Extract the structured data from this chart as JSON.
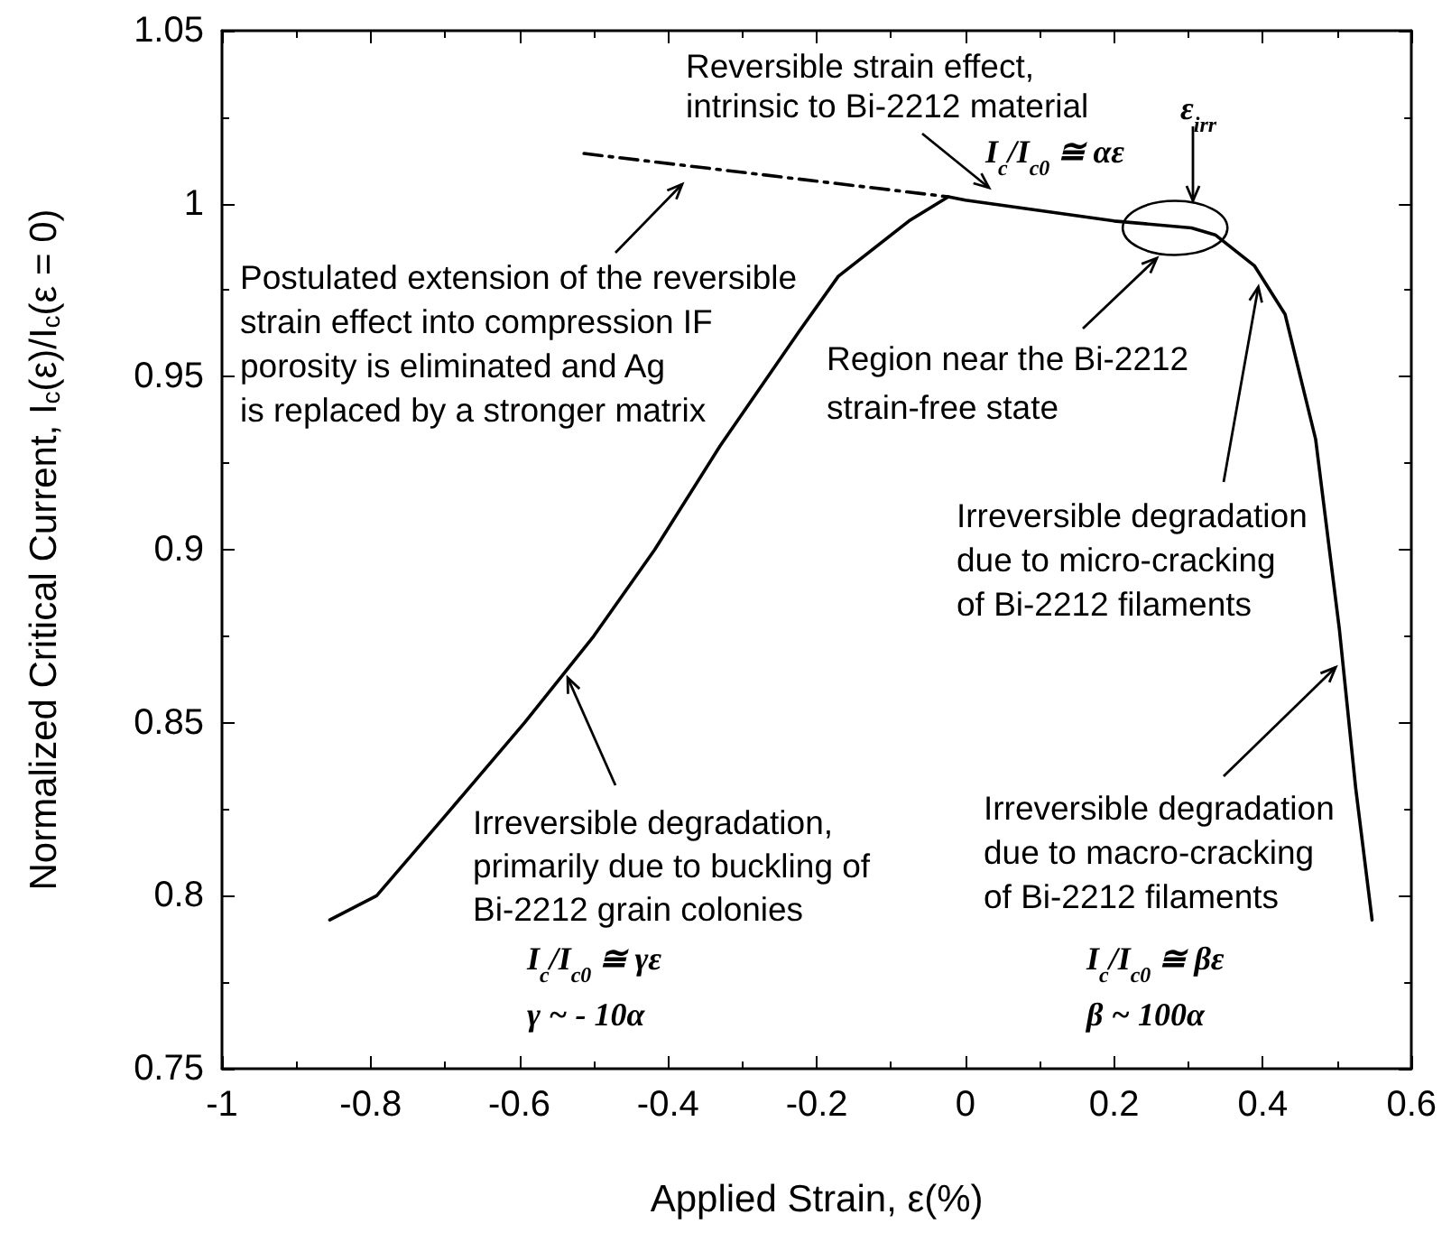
{
  "chart_data": {
    "type": "line",
    "xlabel": "Applied Strain, ε(%)",
    "ylabel": "Normalized Critical Current, I$_{c}$(ε)/I$_{c}$(ε = 0)",
    "xlim": [
      -1,
      0.6
    ],
    "xticks": [
      -1,
      -0.8,
      -0.6,
      -0.4,
      -0.2,
      0,
      0.2,
      0.4,
      0.6
    ],
    "ylim": [
      0.75,
      1.05
    ],
    "yticks": [
      0.75,
      0.8,
      0.85,
      0.9,
      0.95,
      1,
      1.05
    ],
    "grid": false,
    "marker": "none",
    "series": [
      {
        "color": "#000000",
        "line_style": "solid",
        "x": [
          -0.855,
          -0.792,
          -0.7,
          -0.593,
          -0.5,
          -0.418,
          -0.33,
          -0.224,
          -0.171,
          -0.076,
          -0.023,
          0,
          0.2,
          0.304,
          0.336,
          0.389,
          0.43,
          0.471,
          0.503,
          0.525,
          0.547
        ],
        "values": [
          0.793,
          0.8,
          0.823,
          0.85,
          0.875,
          0.9,
          0.93,
          0.963,
          0.979,
          0.995,
          1.002,
          1.001,
          0.995,
          0.993,
          0.991,
          0.982,
          0.968,
          0.932,
          0.877,
          0.831,
          0.793
        ]
      },
      {
        "color": "#000000",
        "line_style": "dashed",
        "x": [
          -0.513,
          -0.023
        ],
        "values": [
          1.0145,
          1.002
        ]
      }
    ],
    "annotations": [
      "Reversible strain effect,\nintrinsic to Bi-2212 material",
      "I$_{c}$/I$_{c0}$ ≅ αε",
      {
        "text": "ε$_{irr}$",
        "x": 0.282,
        "y": 0.993
      },
      "Postulated extension of the reversible\nstrain effect into compression IF\nporosity is eliminated and Ag\nis replaced by a stronger matrix",
      "Region near the Bi-2212\nstrain-free state",
      {
        "text": "Irreversible degradation\ndue to micro-cracking\nof Bi-2212 filaments",
        "x": 0.394,
        "y": 0.976
      },
      {
        "text": "Irreversible degradation,\nprimarily due to buckling of\nBi-2212 grain colonies",
        "x": -0.535,
        "y": 0.863
      },
      {
        "text": "Irreversible degradation\ndue to macro-cracking\nof Bi-2212 filaments",
        "x": 0.498,
        "y": 0.866
      },
      "I$_{c}$/I$_{c0}$ ≅ γε\nγ ~ - 10α",
      "I$_{c}$/I$_{c0}$ ≅ βε\nβ ~ 100α"
    ]
  }
}
